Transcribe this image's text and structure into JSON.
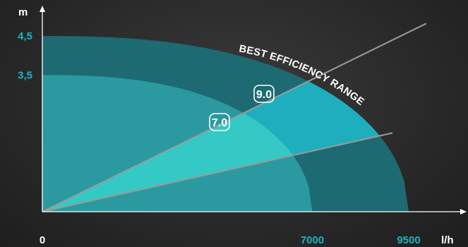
{
  "chart_data": {
    "type": "area",
    "xlabel": "",
    "ylabel": "",
    "x_unit": "l/h",
    "y_unit": "m",
    "xlim": [
      0,
      9500
    ],
    "ylim": [
      0,
      5
    ],
    "x_ticks": [
      {
        "value": 0,
        "label": "0"
      },
      {
        "value": 7000,
        "label": "7000"
      },
      {
        "value": 9500,
        "label": "9500"
      }
    ],
    "y_ticks": [
      {
        "value": 3.5,
        "label": "3,5"
      },
      {
        "value": 4.5,
        "label": "4,5"
      }
    ],
    "series": [
      {
        "name": "9.0",
        "max_head": 4.5,
        "max_flow": 9500,
        "color": "#1d6a73",
        "bep_color": "#1faebd"
      },
      {
        "name": "7.0",
        "max_head": 3.5,
        "max_flow": 7000,
        "color": "#2a9aa0",
        "bep_color": "#35c9c5"
      }
    ],
    "efficiency_lines": [
      {
        "x": 9500,
        "y": 4.6
      },
      {
        "x": 9000,
        "y": 2.0
      }
    ],
    "annotation": "BEST EFFICIENCY RANGE",
    "colors": {
      "axis": "#ffffff",
      "tick_label": "#1fb3c2",
      "line": "#9a9a9a",
      "text": "#ffffff"
    }
  }
}
